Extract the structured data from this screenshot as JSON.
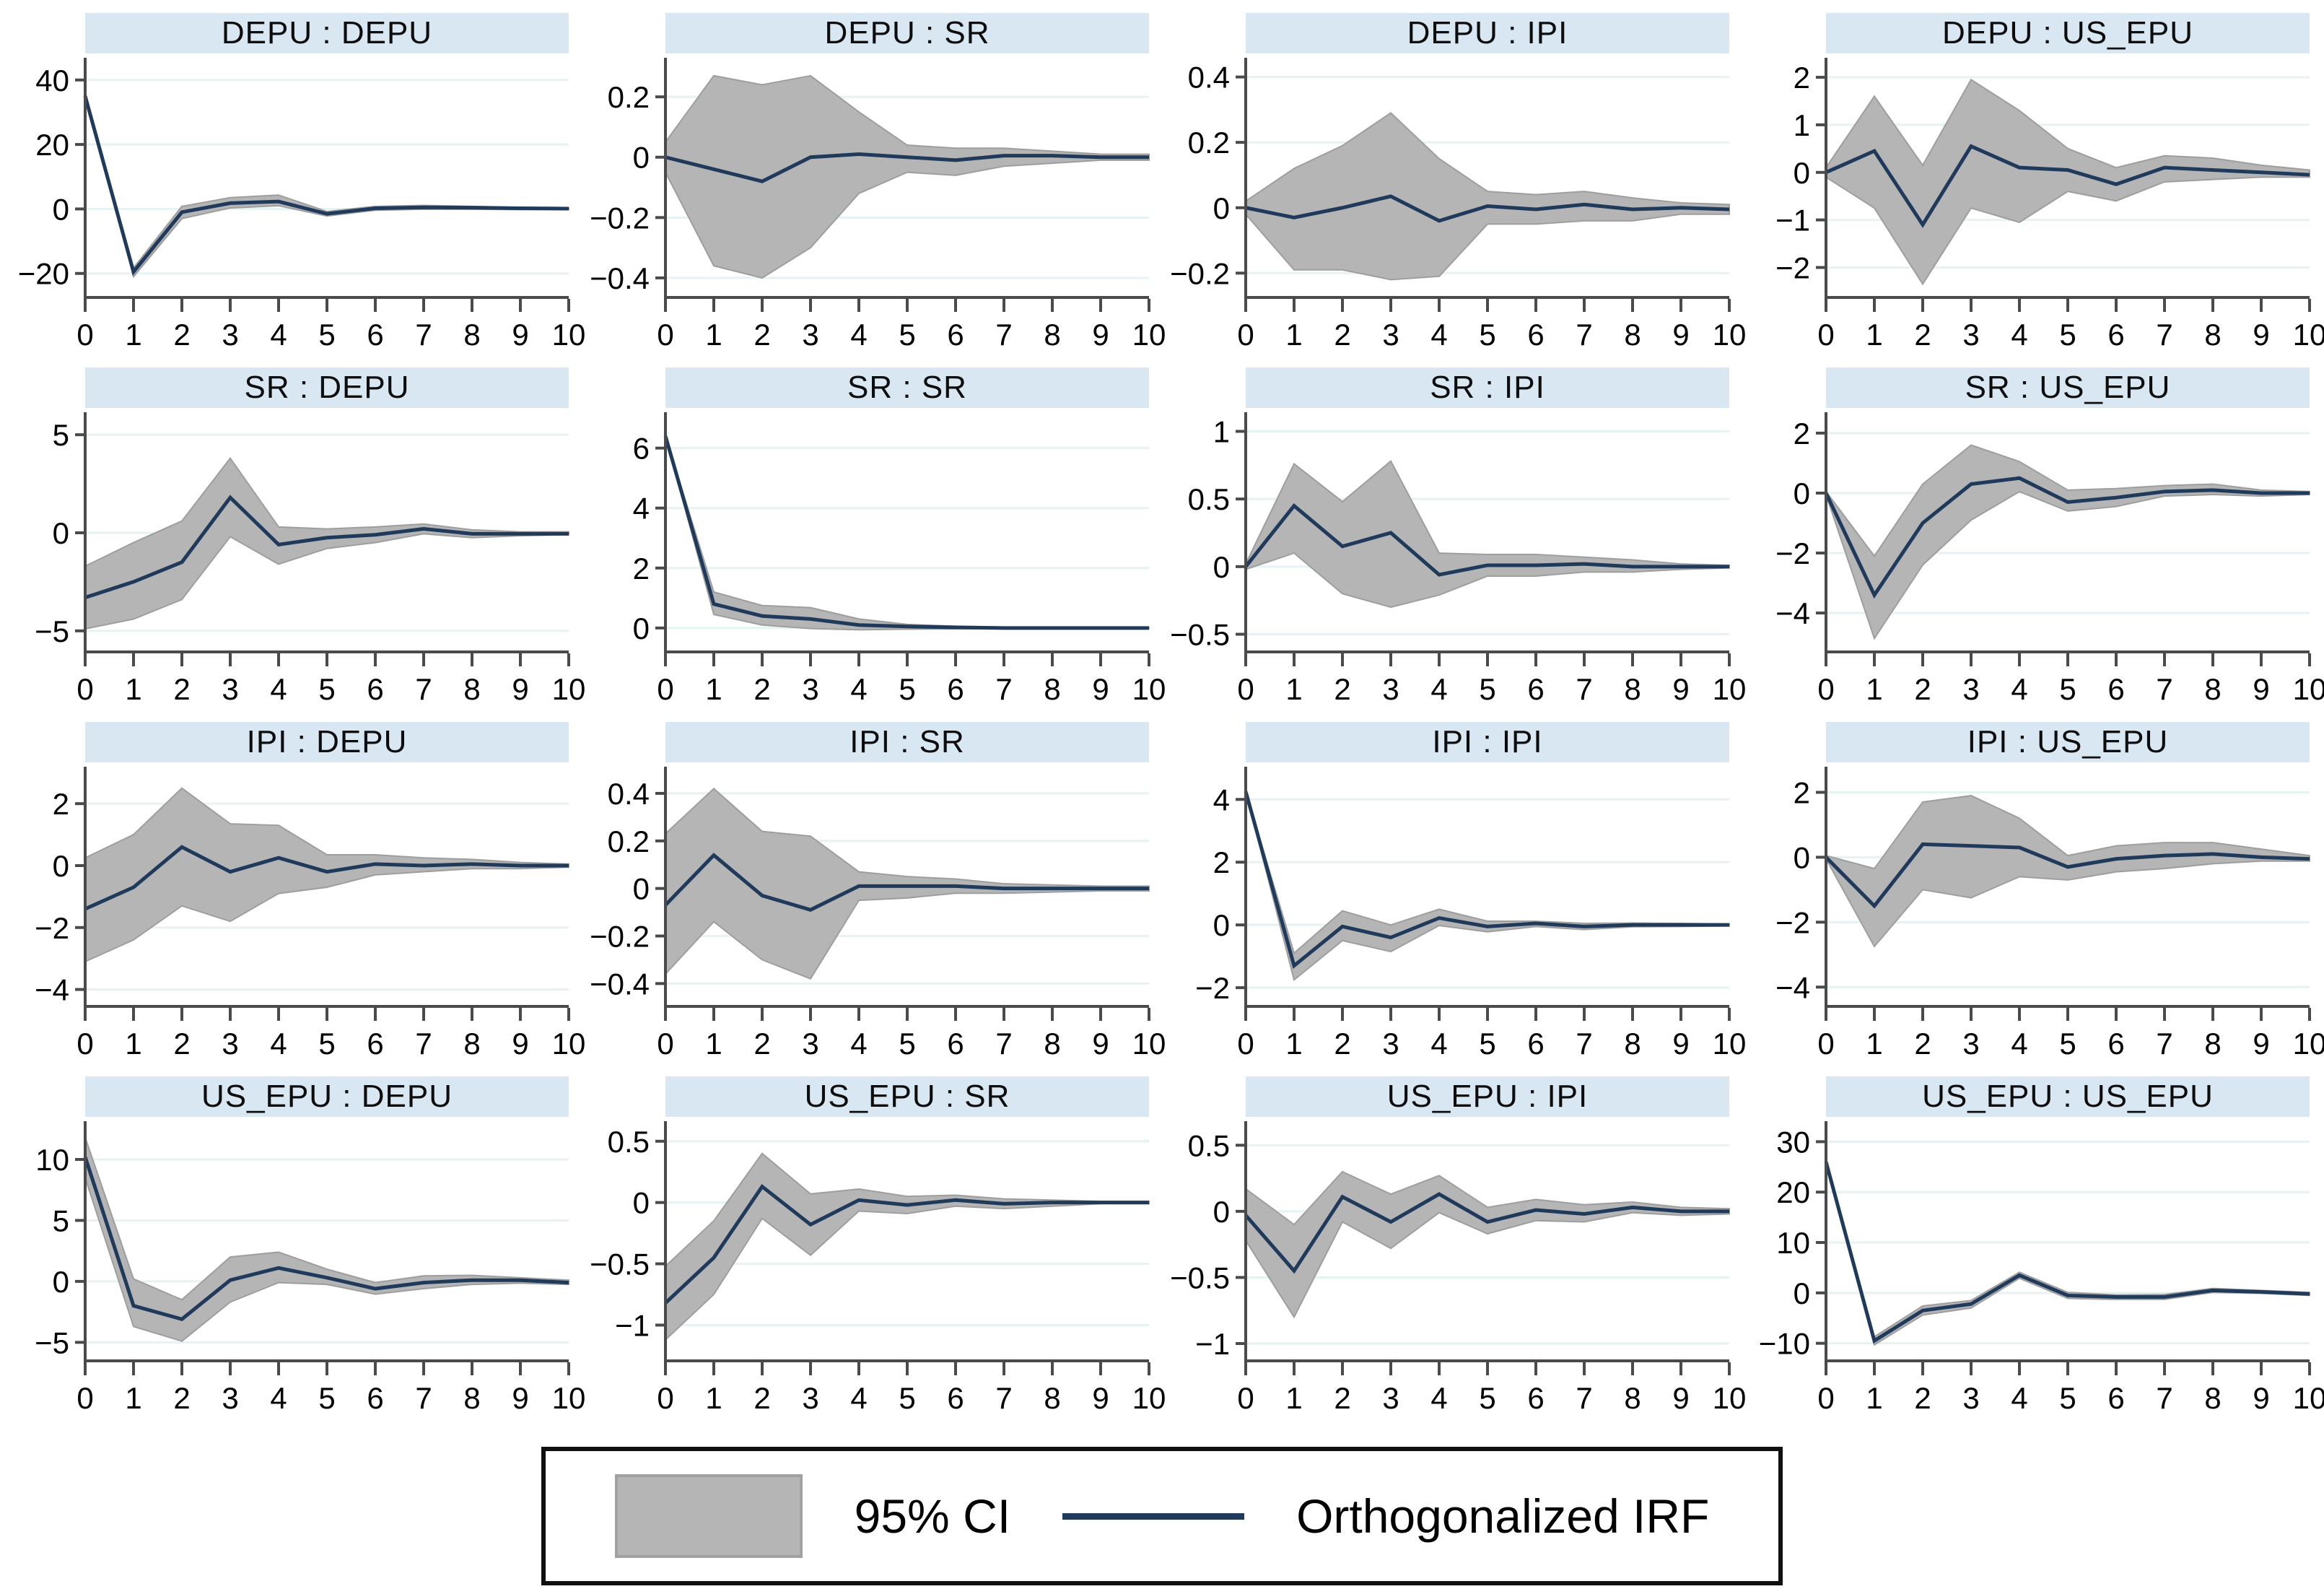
{
  "legend": {
    "ci_label": "95% CI",
    "irf_label": "Orthogonalized IRF"
  },
  "colors": {
    "irf_line": "#203a5c",
    "ci_fill": "#b5b5b5",
    "ci_edge": "#9e9e9e",
    "title_bg": "#d8e7f1",
    "gridline": "#e7f3f2",
    "axis": "#4a4a4a",
    "tick_text": "#000000"
  },
  "chart_data": {
    "type": "line",
    "x_label": "",
    "y_label": "",
    "x": [
      0,
      1,
      2,
      3,
      4,
      5,
      6,
      7,
      8,
      9,
      10
    ],
    "legend_entries": [
      "95% CI",
      "Orthogonalized IRF"
    ],
    "legend_position": "bottom",
    "grid": "horizontal",
    "panels": [
      {
        "title": "DEPU : DEPU",
        "yticks": [
          40,
          20,
          0,
          -20
        ],
        "ylim": [
          -27,
          46
        ],
        "irf": [
          35,
          -19.5,
          -1,
          1.8,
          2.3,
          -1.5,
          0.2,
          0.5,
          0.4,
          0.2,
          0.1
        ],
        "ci_upper": [
          35,
          -18.3,
          0.8,
          3.5,
          4.3,
          -0.8,
          0.8,
          1.1,
          0.8,
          0.5,
          0.3
        ],
        "ci_lower": [
          35,
          -21,
          -3,
          0.3,
          1,
          -2.2,
          -0.4,
          -0.1,
          -0.1,
          -0.2,
          -0.2
        ]
      },
      {
        "title": "DEPU : SR",
        "yticks": [
          0.2,
          0,
          -0.2,
          -0.4
        ],
        "ylim": [
          -0.46,
          0.32
        ],
        "irf": [
          0,
          -0.04,
          -0.08,
          0,
          0.01,
          0,
          -0.01,
          0.005,
          0.005,
          0,
          0
        ],
        "ci_upper": [
          0.05,
          0.27,
          0.24,
          0.27,
          0.15,
          0.04,
          0.03,
          0.03,
          0.02,
          0.01,
          0.01
        ],
        "ci_lower": [
          -0.05,
          -0.36,
          -0.4,
          -0.3,
          -0.12,
          -0.05,
          -0.06,
          -0.03,
          -0.02,
          -0.01,
          -0.01
        ]
      },
      {
        "title": "DEPU : IPI",
        "yticks": [
          0.4,
          0.2,
          0,
          -0.2
        ],
        "ylim": [
          -0.27,
          0.45
        ],
        "irf": [
          0,
          -0.03,
          0,
          0.035,
          -0.04,
          0.005,
          -0.005,
          0.01,
          -0.005,
          0,
          -0.005
        ],
        "ci_upper": [
          0.02,
          0.12,
          0.19,
          0.29,
          0.15,
          0.05,
          0.04,
          0.05,
          0.03,
          0.015,
          0.01
        ],
        "ci_lower": [
          -0.02,
          -0.19,
          -0.19,
          -0.22,
          -0.21,
          -0.05,
          -0.05,
          -0.04,
          -0.04,
          -0.02,
          -0.02
        ]
      },
      {
        "title": "DEPU : US_EPU",
        "yticks": [
          2,
          1,
          0,
          -1,
          -2
        ],
        "ylim": [
          -2.6,
          2.35
        ],
        "irf": [
          0,
          0.45,
          -1.1,
          0.55,
          0.1,
          0.05,
          -0.25,
          0.1,
          0.05,
          0,
          -0.05
        ],
        "ci_upper": [
          0.1,
          1.6,
          0.15,
          1.95,
          1.3,
          0.5,
          0.1,
          0.35,
          0.3,
          0.15,
          0.05
        ],
        "ci_lower": [
          -0.1,
          -0.75,
          -2.35,
          -0.75,
          -1.05,
          -0.4,
          -0.6,
          -0.2,
          -0.15,
          -0.1,
          -0.1
        ]
      },
      {
        "title": "SR : DEPU",
        "yticks": [
          5,
          0,
          -5
        ],
        "ylim": [
          -6,
          6
        ],
        "irf": [
          -3.3,
          -2.5,
          -1.5,
          1.8,
          -0.6,
          -0.25,
          -0.1,
          0.2,
          -0.05,
          -0.05,
          -0.05
        ],
        "ci_upper": [
          -1.7,
          -0.5,
          0.6,
          3.8,
          0.3,
          0.2,
          0.3,
          0.45,
          0.15,
          0.05,
          0.05
        ],
        "ci_lower": [
          -4.9,
          -4.4,
          -3.4,
          -0.2,
          -1.6,
          -0.8,
          -0.5,
          -0.05,
          -0.25,
          -0.15,
          -0.1
        ]
      },
      {
        "title": "SR : SR",
        "yticks": [
          6,
          4,
          2,
          0
        ],
        "ylim": [
          -0.75,
          7.1
        ],
        "irf": [
          6.4,
          0.8,
          0.4,
          0.3,
          0.1,
          0.05,
          0.02,
          0,
          0,
          0,
          0
        ],
        "ci_upper": [
          6.4,
          1.2,
          0.75,
          0.68,
          0.3,
          0.12,
          0.06,
          0.03,
          0.02,
          0.01,
          0.01
        ],
        "ci_lower": [
          6.4,
          0.45,
          0.1,
          -0.02,
          -0.06,
          -0.04,
          -0.03,
          -0.02,
          -0.01,
          -0.01,
          -0.01
        ]
      },
      {
        "title": "SR : IPI",
        "yticks": [
          1,
          0.5,
          0,
          -0.5
        ],
        "ylim": [
          -0.62,
          1.12
        ],
        "irf": [
          0,
          0.45,
          0.15,
          0.25,
          -0.06,
          0.01,
          0.01,
          0.02,
          0,
          0,
          0
        ],
        "ci_upper": [
          0.02,
          0.76,
          0.48,
          0.78,
          0.1,
          0.09,
          0.09,
          0.07,
          0.05,
          0.02,
          0.01
        ],
        "ci_lower": [
          -0.02,
          0.1,
          -0.2,
          -0.3,
          -0.21,
          -0.07,
          -0.07,
          -0.04,
          -0.04,
          -0.02,
          -0.01
        ]
      },
      {
        "title": "SR : US_EPU",
        "yticks": [
          2,
          0,
          -2,
          -4
        ],
        "ylim": [
          -5.25,
          2.6
        ],
        "irf": [
          0,
          -3.4,
          -1,
          0.3,
          0.5,
          -0.3,
          -0.15,
          0.05,
          0.1,
          0,
          0
        ],
        "ci_upper": [
          0.05,
          -2.1,
          0.3,
          1.6,
          1.05,
          0.1,
          0.15,
          0.25,
          0.3,
          0.1,
          0.05
        ],
        "ci_lower": [
          -0.05,
          -4.85,
          -2.4,
          -0.9,
          0.05,
          -0.6,
          -0.45,
          -0.1,
          -0.05,
          -0.1,
          -0.05
        ]
      },
      {
        "title": "IPI : DEPU",
        "yticks": [
          2,
          0,
          -2,
          -4
        ],
        "ylim": [
          -4.5,
          3.1
        ],
        "irf": [
          -1.4,
          -0.7,
          0.6,
          -0.2,
          0.25,
          -0.2,
          0.05,
          0,
          0.05,
          0,
          0
        ],
        "ci_upper": [
          0.25,
          1,
          2.5,
          1.35,
          1.3,
          0.35,
          0.35,
          0.25,
          0.2,
          0.1,
          0.05
        ],
        "ci_lower": [
          -3.1,
          -2.4,
          -1.3,
          -1.8,
          -0.9,
          -0.7,
          -0.3,
          -0.2,
          -0.1,
          -0.1,
          -0.05
        ]
      },
      {
        "title": "IPI : SR",
        "yticks": [
          0.4,
          0.2,
          0,
          -0.2,
          -0.4
        ],
        "ylim": [
          -0.49,
          0.5
        ],
        "irf": [
          -0.07,
          0.14,
          -0.03,
          -0.09,
          0.01,
          0.01,
          0.01,
          0,
          0,
          0,
          0
        ],
        "ci_upper": [
          0.23,
          0.42,
          0.24,
          0.22,
          0.07,
          0.05,
          0.04,
          0.02,
          0.015,
          0.01,
          0.01
        ],
        "ci_lower": [
          -0.36,
          -0.14,
          -0.3,
          -0.38,
          -0.05,
          -0.04,
          -0.02,
          -0.02,
          -0.015,
          -0.01,
          -0.01
        ]
      },
      {
        "title": "IPI : IPI",
        "yticks": [
          4,
          2,
          0,
          -2
        ],
        "ylim": [
          -2.55,
          4.95
        ],
        "irf": [
          4.25,
          -1.3,
          -0.05,
          -0.4,
          0.22,
          -0.05,
          0.05,
          -0.05,
          0,
          0,
          0
        ],
        "ci_upper": [
          4.25,
          -0.9,
          0.45,
          0,
          0.5,
          0.12,
          0.12,
          0.05,
          0.06,
          0.05,
          0.03
        ],
        "ci_lower": [
          4.25,
          -1.75,
          -0.5,
          -0.85,
          -0.02,
          -0.22,
          -0.05,
          -0.15,
          -0.06,
          -0.05,
          -0.03
        ]
      },
      {
        "title": "IPI : US_EPU",
        "yticks": [
          2,
          0,
          -2,
          -4
        ],
        "ylim": [
          -4.55,
          2.7
        ],
        "irf": [
          0,
          -1.5,
          0.4,
          0.35,
          0.3,
          -0.3,
          -0.05,
          0.05,
          0.1,
          0,
          -0.05
        ],
        "ci_upper": [
          0.05,
          -0.35,
          1.7,
          1.9,
          1.2,
          0.05,
          0.35,
          0.45,
          0.45,
          0.25,
          0.05
        ],
        "ci_lower": [
          -0.05,
          -2.75,
          -1,
          -1.25,
          -0.6,
          -0.7,
          -0.45,
          -0.35,
          -0.2,
          -0.12,
          -0.12
        ]
      },
      {
        "title": "US_EPU : DEPU",
        "yticks": [
          10,
          5,
          0,
          -5
        ],
        "ylim": [
          -6.4,
          12.9
        ],
        "irf": [
          10.2,
          -2,
          -3.1,
          0.1,
          1.1,
          0.3,
          -0.6,
          -0.1,
          0.1,
          0.1,
          -0.1
        ],
        "ci_upper": [
          11.8,
          0.2,
          -1.5,
          2,
          2.4,
          1,
          -0.1,
          0.45,
          0.5,
          0.3,
          0.1
        ],
        "ci_lower": [
          8.5,
          -3.7,
          -4.9,
          -1.7,
          -0.1,
          -0.25,
          -1.05,
          -0.6,
          -0.25,
          -0.15,
          -0.25
        ]
      },
      {
        "title": "US_EPU : SR",
        "yticks": [
          0.5,
          0,
          -0.5,
          -1
        ],
        "ylim": [
          -1.28,
          0.64
        ],
        "irf": [
          -0.82,
          -0.45,
          0.13,
          -0.18,
          0.02,
          -0.02,
          0.02,
          -0.01,
          0,
          0,
          0
        ],
        "ci_upper": [
          -0.52,
          -0.15,
          0.4,
          0.07,
          0.11,
          0.05,
          0.06,
          0.03,
          0.02,
          0.01,
          0.01
        ],
        "ci_lower": [
          -1.12,
          -0.75,
          -0.13,
          -0.43,
          -0.07,
          -0.09,
          -0.03,
          -0.05,
          -0.03,
          -0.01,
          -0.01
        ]
      },
      {
        "title": "US_EPU : IPI",
        "yticks": [
          0.5,
          0,
          -0.5,
          -1
        ],
        "ylim": [
          -1.12,
          0.66
        ],
        "irf": [
          -0.03,
          -0.45,
          0.11,
          -0.08,
          0.13,
          -0.08,
          0.01,
          -0.02,
          0.03,
          0,
          0
        ],
        "ci_upper": [
          0.17,
          -0.1,
          0.3,
          0.13,
          0.27,
          0.03,
          0.09,
          0.05,
          0.07,
          0.03,
          0.02
        ],
        "ci_lower": [
          -0.22,
          -0.8,
          -0.08,
          -0.28,
          -0.01,
          -0.17,
          -0.07,
          -0.08,
          -0.01,
          -0.03,
          -0.02
        ]
      },
      {
        "title": "US_EPU : US_EPU",
        "yticks": [
          30,
          20,
          10,
          0,
          -10
        ],
        "ylim": [
          -13.2,
          33.5
        ],
        "irf": [
          26,
          -9.5,
          -3.5,
          -2.2,
          3.5,
          -0.5,
          -0.8,
          -0.8,
          0.5,
          0.2,
          -0.2
        ],
        "ci_upper": [
          26,
          -8.7,
          -2.6,
          -1.5,
          4.1,
          0.1,
          -0.4,
          -0.3,
          0.9,
          0.5,
          0.1
        ],
        "ci_lower": [
          26,
          -10.3,
          -4.4,
          -3,
          2.9,
          -1.1,
          -1.3,
          -1.3,
          0.1,
          -0.1,
          -0.5
        ]
      }
    ]
  }
}
